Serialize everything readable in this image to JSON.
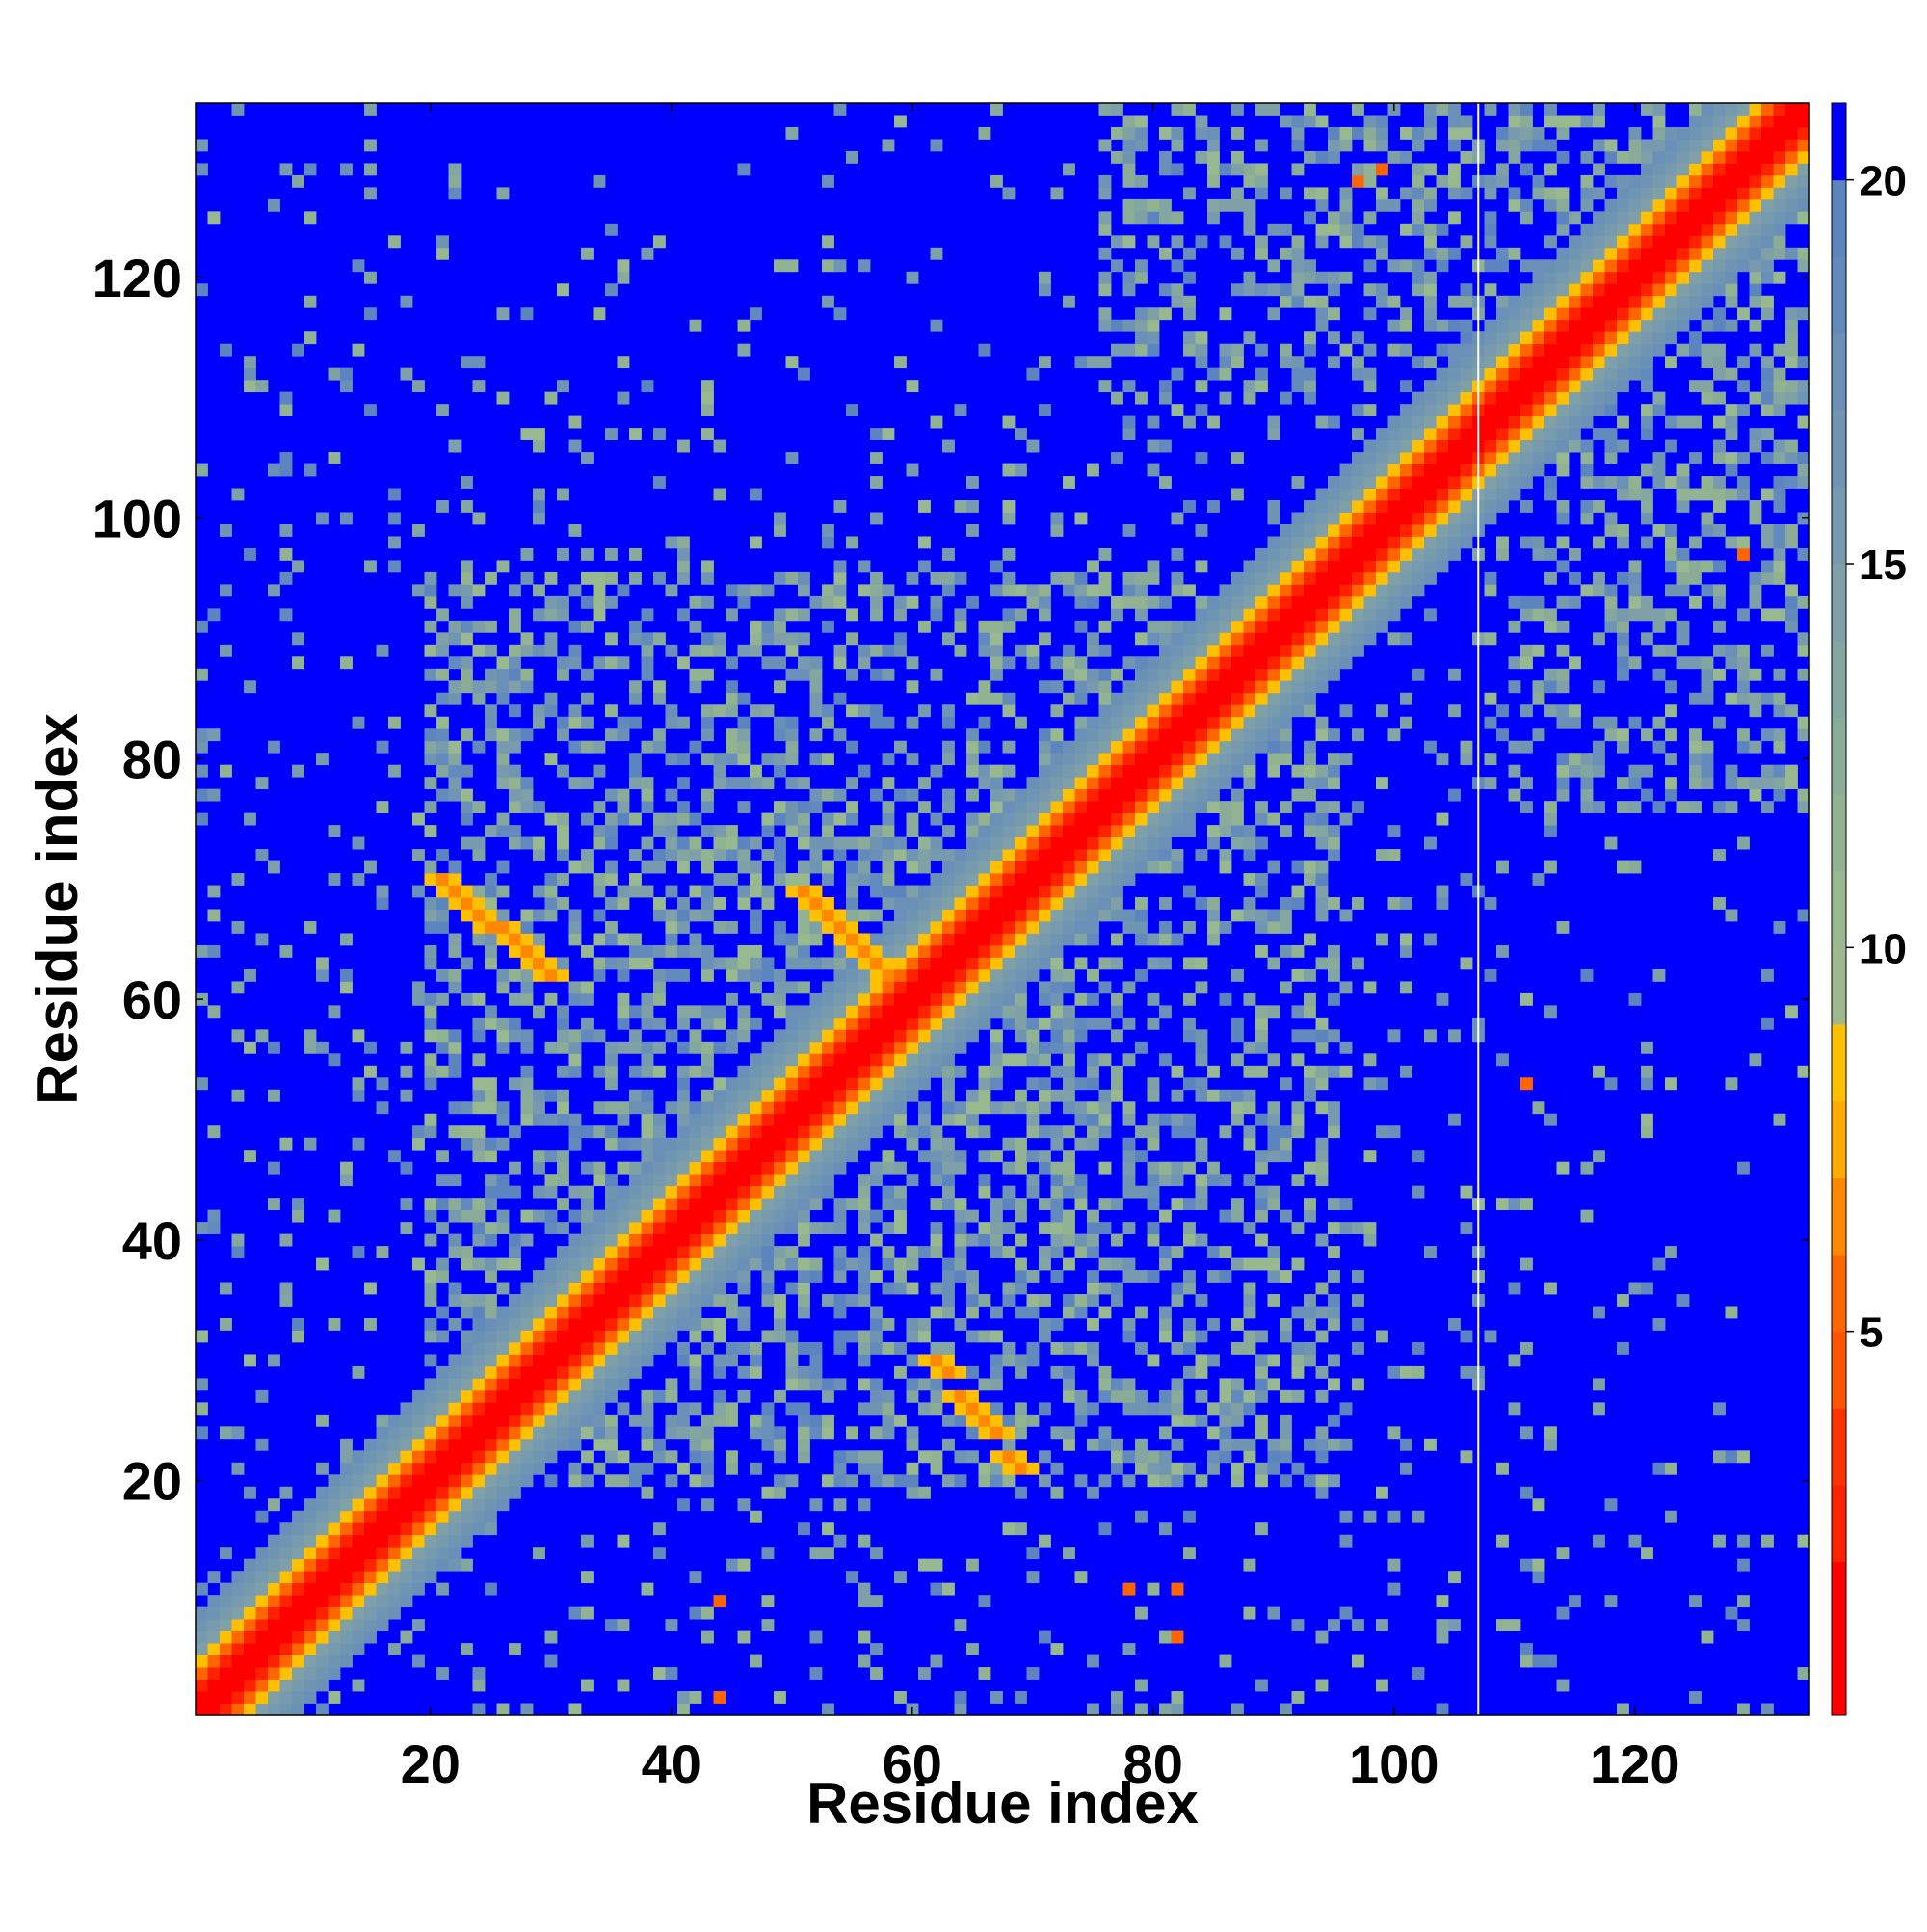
{
  "chart_data": {
    "type": "heatmap",
    "title": "",
    "xlabel": "Residue index",
    "ylabel": "Residue index",
    "xlim": [
      0.5,
      134.5
    ],
    "ylim": [
      0.5,
      134.5
    ],
    "xticks": [
      20,
      40,
      60,
      80,
      100,
      120
    ],
    "yticks": [
      20,
      40,
      60,
      80,
      100,
      120
    ],
    "grid": false,
    "n_residues": 134,
    "domain_boundary_x": 107,
    "colorbar": {
      "ticks": [
        5,
        10,
        15,
        20
      ],
      "range": [
        0,
        21
      ],
      "levels": [
        {
          "max": 2,
          "color": "#ff0000"
        },
        {
          "max": 3,
          "color": "#ff2200"
        },
        {
          "max": 4,
          "color": "#ff3300"
        },
        {
          "max": 5,
          "color": "#ff5500"
        },
        {
          "max": 6,
          "color": "#ff6600"
        },
        {
          "max": 7,
          "color": "#ff8800"
        },
        {
          "max": 8,
          "color": "#ffaa00"
        },
        {
          "max": 9,
          "color": "#ffc000"
        },
        {
          "max": 10,
          "color": "#9eb98e"
        },
        {
          "max": 11,
          "color": "#98b890"
        },
        {
          "max": 12,
          "color": "#92b392"
        },
        {
          "max": 13,
          "color": "#8aab98"
        },
        {
          "max": 14,
          "color": "#84a6a0"
        },
        {
          "max": 15,
          "color": "#7ea0a6"
        },
        {
          "max": 16,
          "color": "#789aae"
        },
        {
          "max": 17,
          "color": "#7095b2"
        },
        {
          "max": 18,
          "color": "#6a90b8"
        },
        {
          "max": 19,
          "color": "#628abc"
        },
        {
          "max": 20,
          "color": "#5c85c0"
        },
        {
          "max": 21,
          "color": "#0000ff"
        }
      ]
    },
    "background_value": 21,
    "contact_features": [
      {
        "kind": "diagonal_band",
        "description": "sequence-local contacts along the main diagonal"
      },
      {
        "kind": "antiparallel_pair",
        "i_range": [
          21,
          30
        ],
        "j_range": [
          62,
          70
        ]
      },
      {
        "kind": "antiparallel_pair",
        "i_range": [
          51,
          58
        ],
        "j_range": [
          62,
          69
        ]
      },
      {
        "kind": "antiparallel_pair",
        "i_range": [
          62,
          69
        ],
        "j_range": [
          21,
          30
        ]
      },
      {
        "kind": "point",
        "i": 44,
        "j": 2
      },
      {
        "kind": "point",
        "i": 44,
        "j": 10
      },
      {
        "kind": "point",
        "i": 78,
        "j": 11
      },
      {
        "kind": "point",
        "i": 82,
        "j": 11
      },
      {
        "kind": "point",
        "i": 82,
        "j": 7
      },
      {
        "kind": "point",
        "i": 97,
        "j": 128
      },
      {
        "kind": "point",
        "i": 99,
        "j": 129
      },
      {
        "kind": "point",
        "i": 129,
        "j": 97
      },
      {
        "kind": "point",
        "i": 111,
        "j": 53
      }
    ]
  }
}
